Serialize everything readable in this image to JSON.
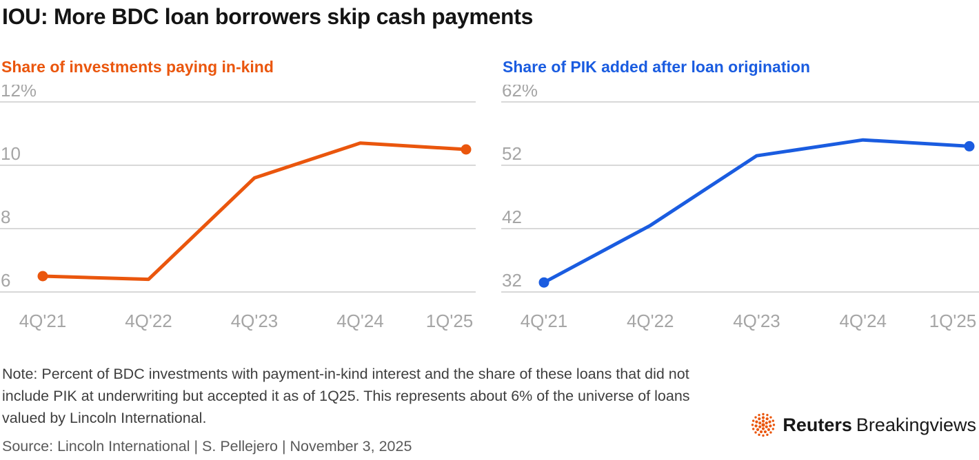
{
  "page": {
    "title": "IOU: More BDC loan borrowers skip cash payments",
    "note": "Note: Percent of BDC investments with payment-in-kind interest and the share of these loans that did not include PIK at underwriting but accepted it as of 1Q25. This represents about 6% of the universe of loans valued by Lincoln International.",
    "source": "Source: Lincoln International | S. Pellejero | November 3, 2025",
    "logo": {
      "brand": "Reuters",
      "suffix": "Breakingviews"
    }
  },
  "colors": {
    "orange": "#ea560d",
    "blue": "#1a5ce0",
    "grid": "#cbcbcb",
    "tick": "#a5a5a5"
  },
  "chart_data": [
    {
      "type": "line",
      "title": "Share of investments paying in-kind",
      "color": "#ea560d",
      "categories": [
        "4Q'21",
        "4Q'22",
        "4Q'23",
        "4Q'24",
        "1Q'25"
      ],
      "values": [
        6.5,
        6.4,
        9.6,
        10.7,
        10.5
      ],
      "yticks": [
        12,
        10,
        8,
        6
      ],
      "ytick_labels": [
        "12%",
        "10",
        "8",
        "6"
      ],
      "ylim": [
        5.3,
        12.6
      ],
      "unit": "%",
      "grid": true,
      "legend": "none",
      "markers": "first-last"
    },
    {
      "type": "line",
      "title": "Share of PIK added after loan origination",
      "color": "#1a5ce0",
      "categories": [
        "4Q'21",
        "4Q'22",
        "4Q'23",
        "4Q'24",
        "1Q'25"
      ],
      "values": [
        33.5,
        42.5,
        53.5,
        56,
        55
      ],
      "yticks": [
        62,
        52,
        42,
        32
      ],
      "ytick_labels": [
        "62%",
        "52",
        "42",
        "32"
      ],
      "ylim": [
        28,
        64
      ],
      "unit": "%",
      "grid": true,
      "legend": "none",
      "markers": "first-last"
    }
  ]
}
